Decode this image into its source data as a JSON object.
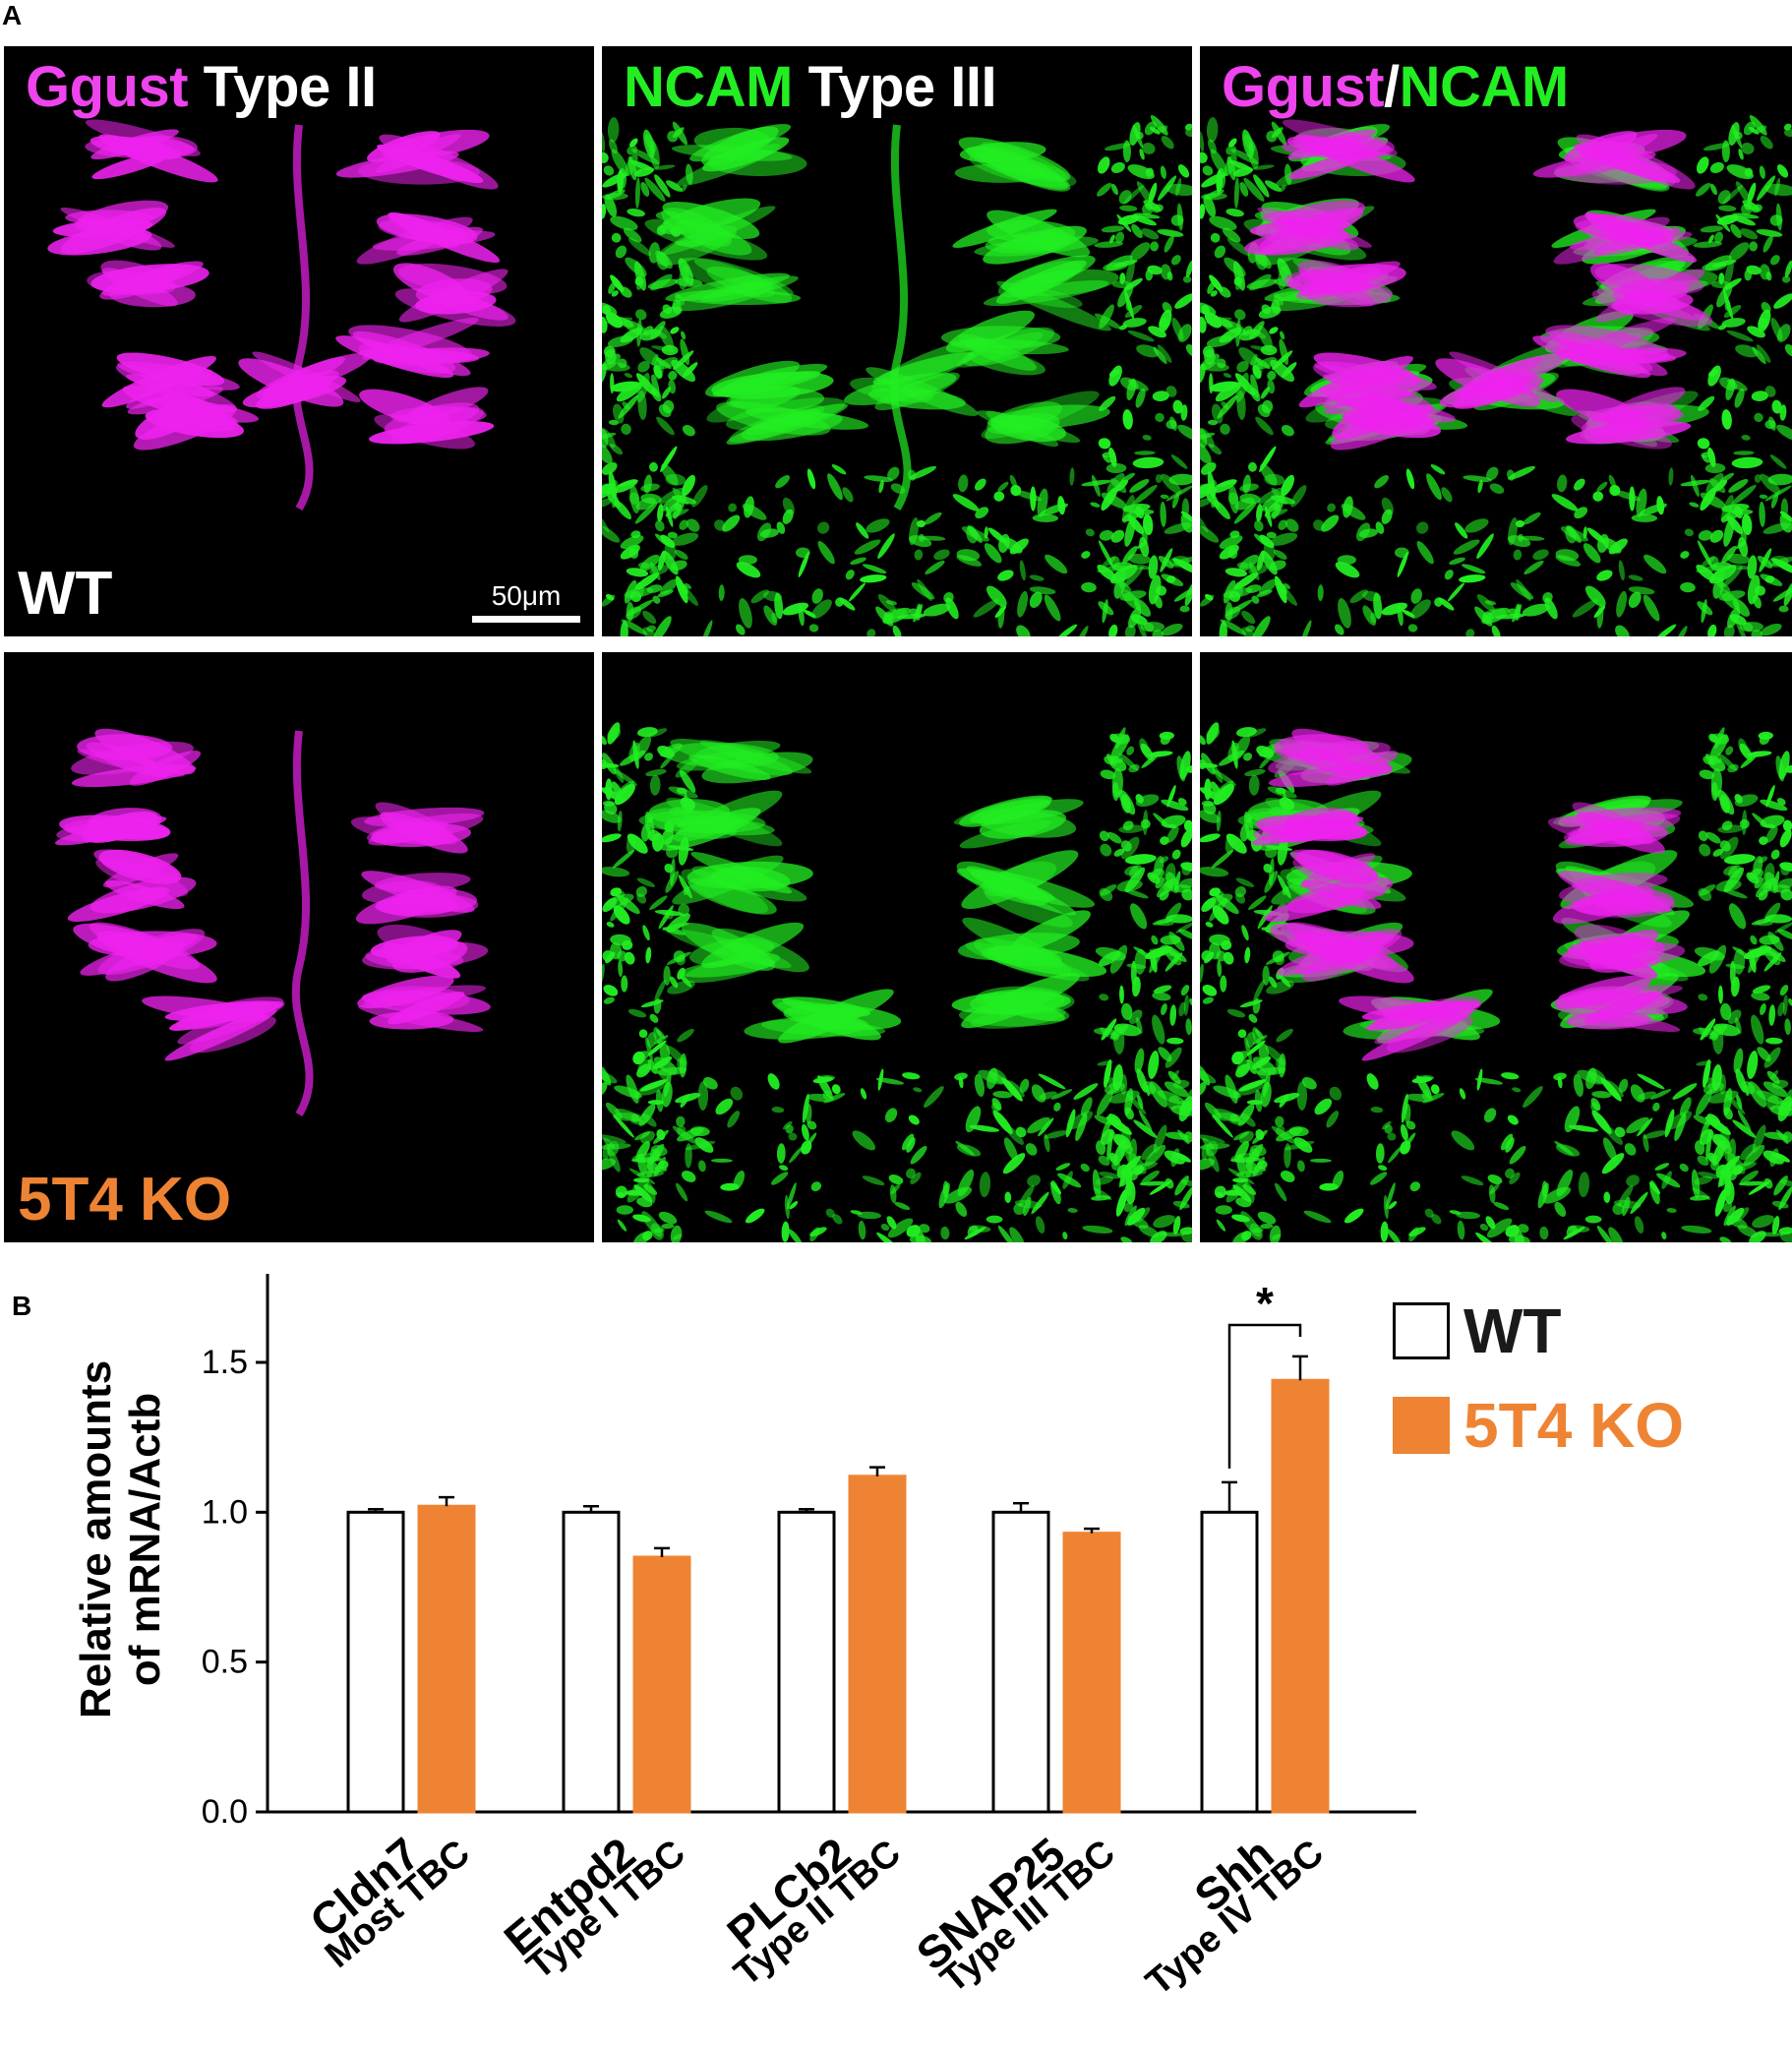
{
  "panel_a": {
    "letter": "A",
    "columns": [
      {
        "parts": [
          {
            "text": "Ggust",
            "color": "#ee44ee"
          },
          {
            "text": " Type II",
            "color": "#ffffff"
          }
        ]
      },
      {
        "parts": [
          {
            "text": "NCAM",
            "color": "#22ee22"
          },
          {
            "text": " Type III",
            "color": "#ffffff"
          }
        ]
      },
      {
        "parts": [
          {
            "text": "Ggust",
            "color": "#ee44ee"
          },
          {
            "text": "/",
            "color": "#ffffff"
          },
          {
            "text": "NCAM",
            "color": "#22ee22"
          }
        ]
      }
    ],
    "rows": [
      {
        "label": "WT",
        "label_color": "#ffffff"
      },
      {
        "label": "5T4 KO",
        "label_color": "#ee8433"
      }
    ],
    "scale_bar": "50μm",
    "colors": {
      "ggust": "#ee22ee",
      "ncam": "#22ee22",
      "background": "#000000"
    }
  },
  "panel_b": {
    "letter": "B"
  },
  "chart_data": {
    "type": "bar",
    "ylabel_lines": [
      "Relative amounts",
      "of mRNA/Actb"
    ],
    "ylim": [
      0,
      1.8
    ],
    "yticks": [
      0.0,
      0.5,
      1.0,
      1.5
    ],
    "ytick_labels": [
      "0.0",
      "0.5",
      "1.0",
      "1.5"
    ],
    "categories": [
      "Cldn7",
      "Entpd2",
      "PLCb2",
      "SNAP25",
      "Shh"
    ],
    "category_sublabels": [
      "Most TBC",
      "Type I TBC",
      "Type II TBC",
      "Type III TBC",
      "Type IV TBC"
    ],
    "series": [
      {
        "name": "WT",
        "fill": "#ffffff",
        "stroke": "#000000",
        "values": [
          1.0,
          1.0,
          1.0,
          1.0,
          1.0
        ],
        "errors": [
          0.01,
          0.02,
          0.01,
          0.03,
          0.1
        ]
      },
      {
        "name": "5T4 KO",
        "fill": "#ee8433",
        "stroke": "#ee8433",
        "values": [
          1.02,
          0.85,
          1.12,
          0.93,
          1.44
        ],
        "errors": [
          0.03,
          0.03,
          0.03,
          0.015,
          0.08
        ]
      }
    ],
    "significance": [
      {
        "category_index": 4,
        "label": "*"
      }
    ],
    "legend": {
      "placement": "top-right",
      "entries": [
        "WT",
        "5T4 KO"
      ]
    }
  }
}
